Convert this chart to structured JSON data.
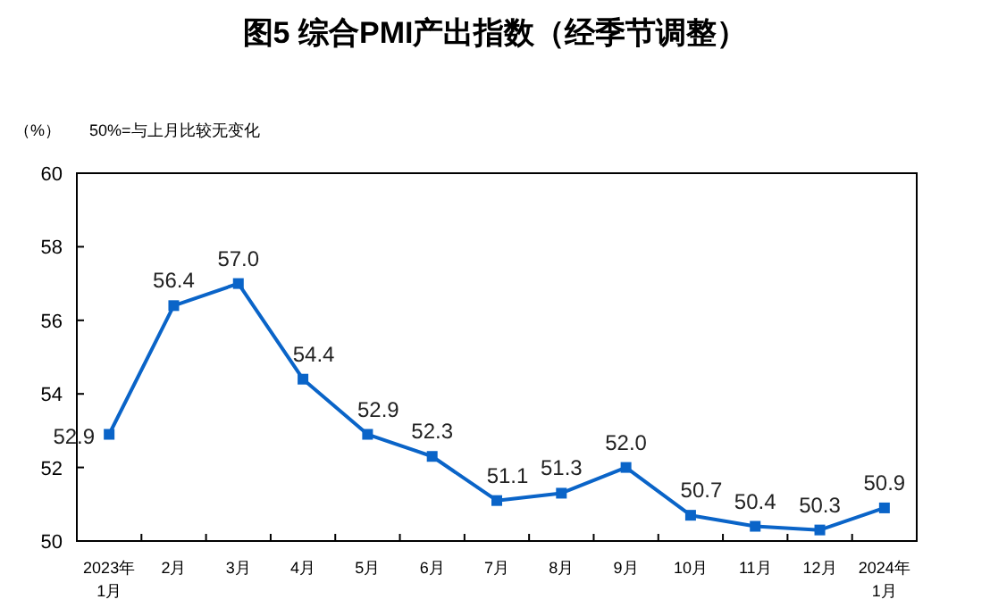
{
  "chart_data": {
    "type": "line",
    "title": "图5  综合PMI产出指数（经季节调整）",
    "ylabel": "（%）",
    "annotations": [
      "50%=与上月比较无变化"
    ],
    "categories": [
      "2023年\n1月",
      "2月",
      "3月",
      "4月",
      "5月",
      "6月",
      "7月",
      "8月",
      "9月",
      "10月",
      "11月",
      "12月",
      "2024年\n1月"
    ],
    "series": [
      {
        "color": "#0a64c8",
        "values": [
          52.9,
          56.4,
          57.0,
          54.4,
          52.9,
          52.3,
          51.1,
          51.3,
          52.0,
          50.7,
          50.4,
          50.3,
          50.9
        ],
        "value_labels": [
          "52.9",
          "56.4",
          "57.0",
          "54.4",
          "52.9",
          "52.3",
          "51.1",
          "51.3",
          "52.0",
          "50.7",
          "50.4",
          "50.3",
          "50.9"
        ]
      }
    ],
    "ylim": [
      50,
      60
    ],
    "yticks": [
      50,
      52,
      54,
      56,
      58,
      60
    ],
    "grid": false,
    "marker": "square",
    "line_style": "solid"
  }
}
